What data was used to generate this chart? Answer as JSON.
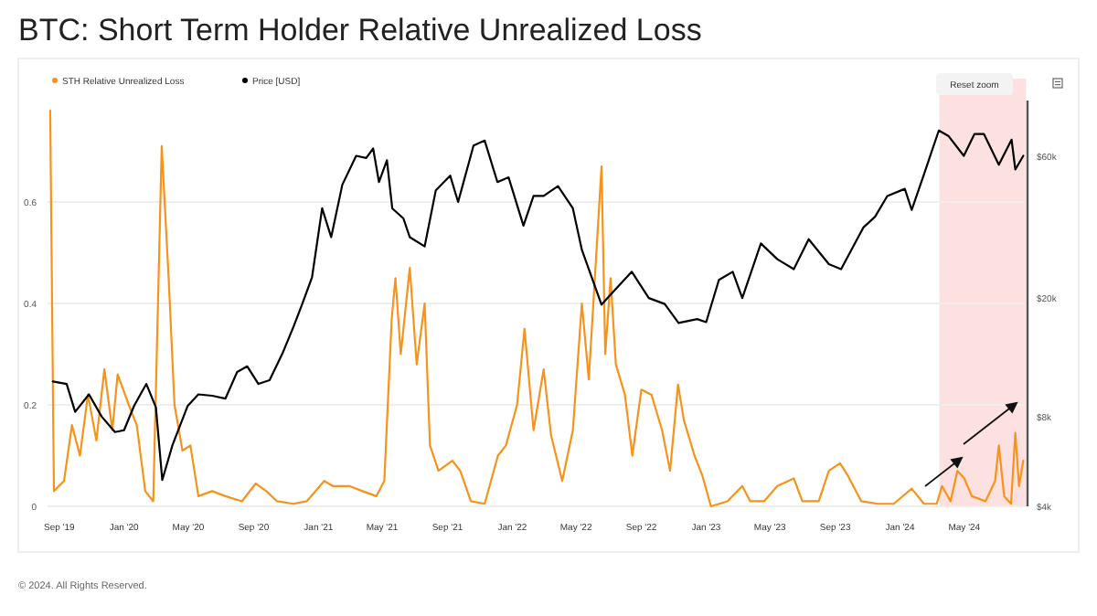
{
  "chart_data": {
    "type": "line",
    "title": "BTC: Short Term Holder Relative Unrealized Loss",
    "annotations": [
      "Reset zoom",
      "© 2024. All Rights Reserved."
    ],
    "xlim": [
      "2019-08-10",
      "2024-08-28"
    ],
    "xticks": [
      {
        "value": "2019-09-01",
        "label": "Sep '19"
      },
      {
        "value": "2020-01-01",
        "label": "Jan '20"
      },
      {
        "value": "2020-05-01",
        "label": "May '20"
      },
      {
        "value": "2020-09-01",
        "label": "Sep '20"
      },
      {
        "value": "2021-01-01",
        "label": "Jan '21"
      },
      {
        "value": "2021-05-01",
        "label": "May '21"
      },
      {
        "value": "2021-09-01",
        "label": "Sep '21"
      },
      {
        "value": "2022-01-01",
        "label": "Jan '22"
      },
      {
        "value": "2022-05-01",
        "label": "May '22"
      },
      {
        "value": "2022-09-01",
        "label": "Sep '22"
      },
      {
        "value": "2023-01-01",
        "label": "Jan '23"
      },
      {
        "value": "2023-05-01",
        "label": "May '23"
      },
      {
        "value": "2023-09-01",
        "label": "Sep '23"
      },
      {
        "value": "2024-01-01",
        "label": "Jan '24"
      },
      {
        "value": "2024-05-01",
        "label": "May '24"
      }
    ],
    "ylim": [
      0,
      0.8
    ],
    "yticks": [
      0,
      0.2,
      0.4,
      0.6
    ],
    "y2lim": [
      4000,
      92000
    ],
    "y2ticks": [
      {
        "value": 4000,
        "label": "$4k"
      },
      {
        "value": 8000,
        "label": "$8k"
      },
      {
        "value": 20000,
        "label": "$20k"
      },
      {
        "value": 60000,
        "label": "$60k"
      }
    ],
    "log": "y2",
    "grid": "y",
    "legend": "top left",
    "line_style": "solid",
    "marker": "none",
    "bands": [
      {
        "axis": "x",
        "from": "2024-03-15",
        "to": "2024-08-25",
        "color": "#fde0e0"
      }
    ],
    "series": [
      {
        "name": "STH Relative Unrealized Loss",
        "color": "#f7931a",
        "x": [
          "2019-08-15",
          "2019-08-22",
          "2019-09-10",
          "2019-09-25",
          "2019-10-10",
          "2019-10-25",
          "2019-11-10",
          "2019-11-25",
          "2019-12-10",
          "2019-12-20",
          "2020-01-10",
          "2020-01-25",
          "2020-02-10",
          "2020-02-25",
          "2020-03-12",
          "2020-03-25",
          "2020-04-05",
          "2020-04-20",
          "2020-05-05",
          "2020-05-20",
          "2020-06-15",
          "2020-07-10",
          "2020-08-10",
          "2020-09-05",
          "2020-09-25",
          "2020-10-15",
          "2020-11-15",
          "2020-12-10",
          "2021-01-12",
          "2021-01-28",
          "2021-02-28",
          "2021-03-25",
          "2021-04-20",
          "2021-05-05",
          "2021-05-19",
          "2021-05-26",
          "2021-06-05",
          "2021-06-22",
          "2021-07-05",
          "2021-07-20",
          "2021-07-30",
          "2021-08-15",
          "2021-09-10",
          "2021-09-25",
          "2021-10-15",
          "2021-11-10",
          "2021-12-05",
          "2021-12-20",
          "2022-01-10",
          "2022-01-24",
          "2022-02-10",
          "2022-03-01",
          "2022-03-15",
          "2022-04-05",
          "2022-04-25",
          "2022-05-12",
          "2022-05-25",
          "2022-06-18",
          "2022-06-25",
          "2022-07-05",
          "2022-07-15",
          "2022-08-01",
          "2022-08-15",
          "2022-09-01",
          "2022-09-20",
          "2022-10-10",
          "2022-10-25",
          "2022-11-09",
          "2022-11-20",
          "2022-12-10",
          "2022-12-25",
          "2023-01-10",
          "2023-02-10",
          "2023-03-10",
          "2023-03-25",
          "2023-04-20",
          "2023-05-15",
          "2023-06-15",
          "2023-07-01",
          "2023-08-01",
          "2023-08-20",
          "2023-09-10",
          "2023-09-25",
          "2023-10-20",
          "2023-11-20",
          "2023-12-20",
          "2024-01-23",
          "2024-02-15",
          "2024-03-10",
          "2024-03-20",
          "2024-04-05",
          "2024-04-18",
          "2024-05-01",
          "2024-05-15",
          "2024-06-10",
          "2024-06-28",
          "2024-07-05",
          "2024-07-15",
          "2024-07-28",
          "2024-08-05",
          "2024-08-12",
          "2024-08-20"
        ],
        "values": [
          0.78,
          0.03,
          0.05,
          0.16,
          0.1,
          0.22,
          0.13,
          0.27,
          0.15,
          0.26,
          0.2,
          0.16,
          0.03,
          0.01,
          0.71,
          0.45,
          0.2,
          0.11,
          0.12,
          0.02,
          0.03,
          0.02,
          0.01,
          0.045,
          0.03,
          0.01,
          0.005,
          0.01,
          0.05,
          0.04,
          0.04,
          0.03,
          0.02,
          0.05,
          0.37,
          0.45,
          0.3,
          0.47,
          0.28,
          0.4,
          0.12,
          0.07,
          0.09,
          0.07,
          0.01,
          0.005,
          0.1,
          0.12,
          0.2,
          0.35,
          0.15,
          0.27,
          0.14,
          0.05,
          0.15,
          0.4,
          0.25,
          0.67,
          0.3,
          0.45,
          0.28,
          0.22,
          0.1,
          0.23,
          0.22,
          0.15,
          0.07,
          0.24,
          0.17,
          0.1,
          0.06,
          0,
          0.01,
          0.04,
          0.01,
          0.01,
          0.04,
          0.055,
          0.01,
          0.01,
          0.07,
          0.085,
          0.06,
          0.01,
          0.005,
          0.005,
          0.035,
          0.005,
          0.005,
          0.04,
          0.01,
          0.07,
          0.055,
          0.02,
          0.01,
          0.05,
          0.12,
          0.02,
          0.005,
          0.145,
          0.04,
          0.09
        ]
      },
      {
        "name": "Price [USD]",
        "color": "#000000",
        "axis": "y2",
        "x": [
          "2019-08-20",
          "2019-09-15",
          "2019-10-01",
          "2019-10-27",
          "2019-11-20",
          "2019-12-15",
          "2020-01-01",
          "2020-01-20",
          "2020-02-12",
          "2020-03-01",
          "2020-03-13",
          "2020-04-01",
          "2020-04-30",
          "2020-05-20",
          "2020-06-15",
          "2020-07-10",
          "2020-08-01",
          "2020-08-20",
          "2020-09-10",
          "2020-10-01",
          "2020-10-25",
          "2020-11-15",
          "2020-12-01",
          "2020-12-20",
          "2021-01-08",
          "2021-01-25",
          "2021-02-15",
          "2021-03-13",
          "2021-04-01",
          "2021-04-14",
          "2021-04-25",
          "2021-05-10",
          "2021-05-20",
          "2021-06-10",
          "2021-06-22",
          "2021-07-20",
          "2021-08-10",
          "2021-09-06",
          "2021-09-21",
          "2021-10-20",
          "2021-11-10",
          "2021-12-04",
          "2021-12-25",
          "2022-01-22",
          "2022-02-10",
          "2022-03-01",
          "2022-03-28",
          "2022-04-25",
          "2022-05-12",
          "2022-06-18",
          "2022-07-10",
          "2022-08-14",
          "2022-09-15",
          "2022-10-15",
          "2022-11-10",
          "2022-12-15",
          "2023-01-01",
          "2023-01-25",
          "2023-02-20",
          "2023-03-10",
          "2023-04-14",
          "2023-05-15",
          "2023-06-15",
          "2023-07-13",
          "2023-08-20",
          "2023-09-12",
          "2023-10-24",
          "2023-11-15",
          "2023-12-08",
          "2024-01-10",
          "2024-01-23",
          "2024-02-15",
          "2024-03-14",
          "2024-04-01",
          "2024-04-30",
          "2024-05-20",
          "2024-06-07",
          "2024-07-05",
          "2024-07-29",
          "2024-08-05",
          "2024-08-20"
        ],
        "values": [
          10500,
          10300,
          8300,
          9500,
          8000,
          7100,
          7200,
          8700,
          10300,
          8600,
          4900,
          6400,
          8700,
          9500,
          9400,
          9200,
          11300,
          11800,
          10300,
          10600,
          13000,
          16000,
          19000,
          23500,
          40000,
          32000,
          48000,
          60000,
          59000,
          63500,
          49000,
          58000,
          40000,
          37000,
          32000,
          29800,
          46000,
          51500,
          42000,
          65000,
          67500,
          49000,
          50800,
          35000,
          44000,
          44000,
          47500,
          40000,
          29000,
          19000,
          21000,
          24500,
          20000,
          19100,
          16500,
          17000,
          16600,
          23000,
          24500,
          20000,
          30500,
          27000,
          25000,
          31500,
          26000,
          25000,
          34500,
          37500,
          44000,
          46500,
          39500,
          52000,
          73000,
          70000,
          60000,
          71000,
          71000,
          56000,
          68000,
          54000,
          60000
        ]
      }
    ]
  }
}
